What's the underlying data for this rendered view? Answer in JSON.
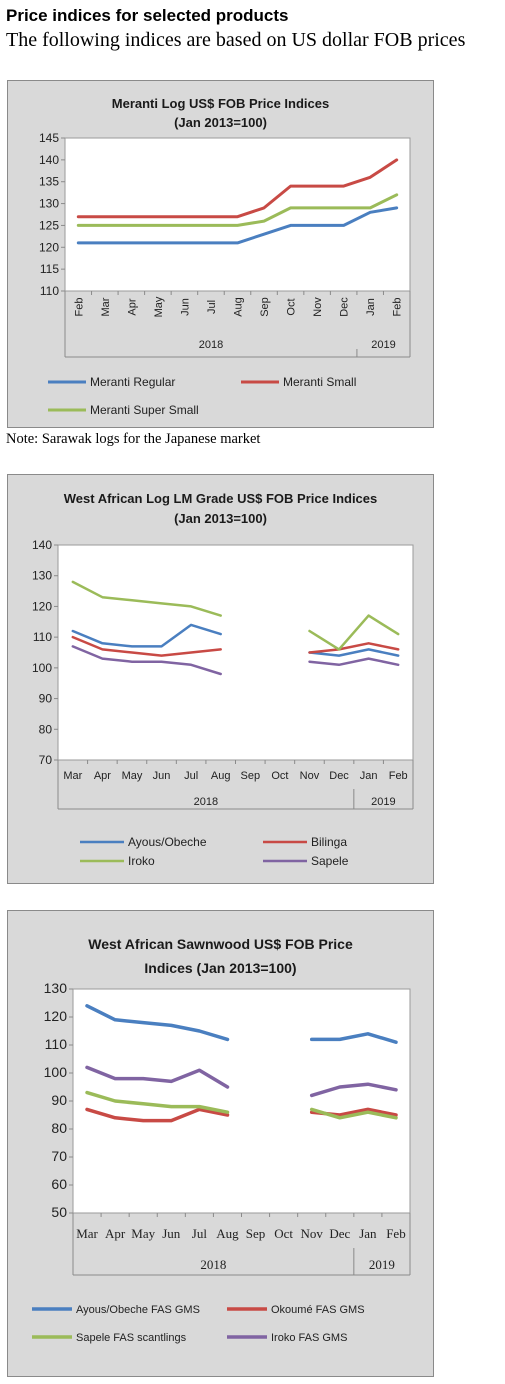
{
  "header": {
    "title": "Price indices for selected products",
    "subtitle": "The following indices are based on US dollar FOB prices"
  },
  "note": "Note: Sarawak logs for the Japanese market",
  "chart_data": [
    {
      "type": "line",
      "title": "Meranti Log US$ FOB Price Indices",
      "subtitle": "(Jan 2013=100)",
      "categories": [
        "Feb",
        "Mar",
        "Apr",
        "May",
        "Jun",
        "Jul",
        "Aug",
        "Sep",
        "Oct",
        "Nov",
        "Dec",
        "Jan",
        "Feb"
      ],
      "year_groups": [
        {
          "label": "2018",
          "from": 0,
          "to": 10
        },
        {
          "label": "2019",
          "from": 11,
          "to": 12
        }
      ],
      "ylim": [
        110,
        145
      ],
      "yticks": [
        110,
        115,
        120,
        125,
        130,
        135,
        140,
        145
      ],
      "grid": false,
      "legend_position": "bottom",
      "series": [
        {
          "name": "Meranti Regular",
          "color": "#4a7fc0",
          "values": [
            121,
            121,
            121,
            121,
            121,
            121,
            121,
            123,
            125,
            125,
            125,
            128,
            129
          ]
        },
        {
          "name": "Meranti Small",
          "color": "#c84a45",
          "values": [
            127,
            127,
            127,
            127,
            127,
            127,
            127,
            129,
            134,
            134,
            134,
            136,
            140
          ]
        },
        {
          "name": "Meranti Super Small",
          "color": "#9bbb59",
          "values": [
            125,
            125,
            125,
            125,
            125,
            125,
            125,
            126,
            129,
            129,
            129,
            129,
            132
          ]
        }
      ]
    },
    {
      "type": "line",
      "title": "West African Log LM Grade US$ FOB Price Indices",
      "subtitle": "(Jan 2013=100)",
      "categories": [
        "Mar",
        "Apr",
        "May",
        "Jun",
        "Jul",
        "Aug",
        "Sep",
        "Oct",
        "Nov",
        "Dec",
        "Jan",
        "Feb"
      ],
      "year_groups": [
        {
          "label": "2018",
          "from": 0,
          "to": 9
        },
        {
          "label": "2019",
          "from": 10,
          "to": 11
        }
      ],
      "ylim": [
        70,
        140
      ],
      "yticks": [
        70,
        80,
        90,
        100,
        110,
        120,
        130,
        140
      ],
      "grid": false,
      "legend_position": "bottom",
      "series": [
        {
          "name": "Ayous/Obeche",
          "color": "#4a7fc0",
          "values": [
            112,
            108,
            107,
            107,
            114,
            111,
            null,
            null,
            105,
            104,
            106,
            104
          ]
        },
        {
          "name": "Bilinga",
          "color": "#c84a45",
          "values": [
            110,
            106,
            105,
            104,
            105,
            106,
            null,
            null,
            105,
            106,
            108,
            106
          ]
        },
        {
          "name": "Iroko",
          "color": "#9bbb59",
          "values": [
            128,
            123,
            122,
            121,
            120,
            117,
            null,
            null,
            112,
            106,
            117,
            111
          ]
        },
        {
          "name": "Sapele",
          "color": "#8064a2",
          "values": [
            107,
            103,
            102,
            102,
            101,
            98,
            null,
            null,
            102,
            101,
            103,
            101
          ]
        }
      ]
    },
    {
      "type": "line",
      "title": "West African Sawnwood US$ FOB Price",
      "subtitle": "Indices (Jan 2013=100)",
      "categories": [
        "Mar",
        "Apr",
        "May",
        "Jun",
        "Jul",
        "Aug",
        "Sep",
        "Oct",
        "Nov",
        "Dec",
        "Jan",
        "Feb"
      ],
      "year_groups": [
        {
          "label": "2018",
          "from": 0,
          "to": 9
        },
        {
          "label": "2019",
          "from": 10,
          "to": 11
        }
      ],
      "ylim": [
        50,
        130
      ],
      "yticks": [
        50,
        60,
        70,
        80,
        90,
        100,
        110,
        120,
        130
      ],
      "grid": false,
      "legend_position": "bottom",
      "series": [
        {
          "name": "Ayous/Obeche FAS GMS",
          "color": "#4a7fc0",
          "values": [
            124,
            119,
            118,
            117,
            115,
            112,
            null,
            null,
            112,
            112,
            114,
            111
          ]
        },
        {
          "name": "Okoumé FAS GMS",
          "color": "#c84a45",
          "values": [
            87,
            84,
            83,
            83,
            87,
            85,
            null,
            null,
            86,
            85,
            87,
            85
          ]
        },
        {
          "name": "Sapele FAS scantlings",
          "color": "#9bbb59",
          "values": [
            93,
            90,
            89,
            88,
            88,
            86,
            null,
            null,
            87,
            84,
            86,
            84
          ]
        },
        {
          "name": "Iroko FAS GMS",
          "color": "#8064a2",
          "values": [
            102,
            98,
            98,
            97,
            101,
            95,
            null,
            null,
            92,
            95,
            96,
            94
          ]
        }
      ]
    }
  ]
}
